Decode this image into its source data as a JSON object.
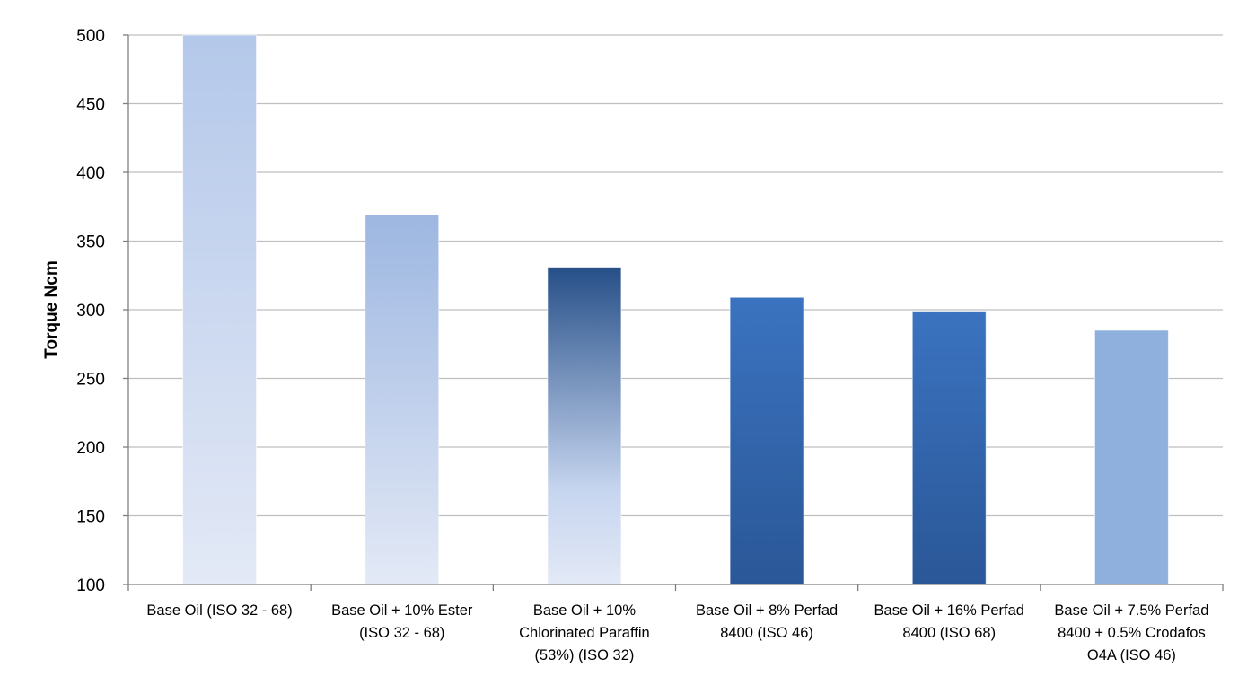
{
  "chart_data": {
    "type": "bar",
    "title": "",
    "xlabel": "",
    "ylabel": "Torque Ncm",
    "ylim": [
      100,
      500
    ],
    "yticks": [
      "100",
      "150",
      "200",
      "250",
      "300",
      "350",
      "400",
      "450",
      "500"
    ],
    "grid": true,
    "legend": "none",
    "categories": [
      [
        "Base Oil (ISO 32 - 68)"
      ],
      [
        "Base Oil + 10% Ester",
        "(ISO 32 - 68)"
      ],
      [
        "Base Oil + 10%",
        "Chlorinated Paraffin",
        "(53%) (ISO 32)"
      ],
      [
        "Base Oil + 8% Perfad",
        "8400 (ISO 46)"
      ],
      [
        "Base Oil + 16% Perfad",
        "8400 (ISO 68)"
      ],
      [
        "Base Oil + 7.5% Perfad",
        "8400 + 0.5% Crodafos",
        "O4A (ISO 46)"
      ]
    ],
    "values": [
      500,
      369,
      331,
      309,
      299,
      285
    ],
    "bar_styles": [
      {
        "top": "#b4c8ea",
        "bottom": "#e3e9f6"
      },
      {
        "top": "#9db7e1",
        "bottom": "#e3e9f6"
      },
      {
        "top": "#264f88",
        "mid": "#c6d5ef",
        "bottom": "#e3e9f6"
      },
      {
        "top": "#3b73c0",
        "bottom": "#2a5797"
      },
      {
        "top": "#3b73c0",
        "bottom": "#2a5797"
      },
      {
        "top": "#8fb0dd",
        "bottom": "#8fb0dd"
      }
    ],
    "colors": {
      "grid": "#bfbfbf",
      "axis": "#7f7f7f"
    }
  }
}
